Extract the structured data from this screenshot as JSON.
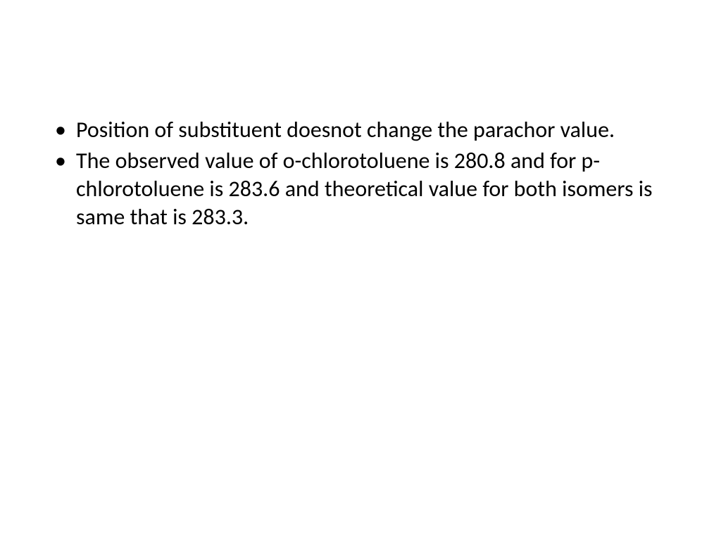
{
  "slide": {
    "background_color": "#ffffff",
    "text_color": "#000000",
    "font_family": "Calibri",
    "font_size_pt": 24,
    "bullets": [
      {
        "text": "Position of substituent doesnot change the parachor value."
      },
      {
        "text": "The observed value of o-chlorotoluene is 280.8 and for p-chlorotoluene is 283.6 and theoretical value for both isomers is same that is 283.3."
      }
    ]
  }
}
